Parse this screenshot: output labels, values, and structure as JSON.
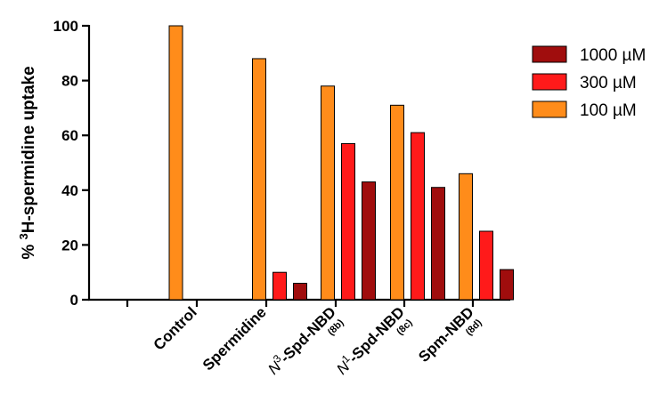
{
  "chart_data": {
    "type": "bar",
    "ylabel_prefix": "% ",
    "ylabel_sup": "3",
    "ylabel_main": "H-spermidine uptake",
    "ylim": [
      0,
      100
    ],
    "yticks": [
      0,
      20,
      40,
      60,
      80,
      100
    ],
    "categories": [
      {
        "main_pre": "",
        "main_sup": "",
        "main": "Control",
        "sub": ""
      },
      {
        "main_pre": "",
        "main_sup": "",
        "main": "Spermidine",
        "sub": ""
      },
      {
        "main_pre": "N",
        "main_sup": "3",
        "main": "-Spd-NBD",
        "sub": "(8b)"
      },
      {
        "main_pre": "N",
        "main_sup": "1",
        "main": "-Spd-NBD",
        "sub": "(8c)"
      },
      {
        "main_pre": "",
        "main_sup": "",
        "main": "Spm-NBD",
        "sub": "(8d)"
      }
    ],
    "series": [
      {
        "name": "100 µM",
        "color": "#ff8c1a",
        "values": [
          100,
          88,
          78,
          71,
          46
        ]
      },
      {
        "name": "300 µM",
        "color": "#ff1a1a",
        "values": [
          null,
          10,
          57,
          61,
          25
        ]
      },
      {
        "name": "1000 µM",
        "color": "#a00d0d",
        "values": [
          null,
          6,
          43,
          41,
          11
        ]
      }
    ],
    "legend_order": [
      2,
      1,
      0
    ],
    "legend_position": "right"
  }
}
